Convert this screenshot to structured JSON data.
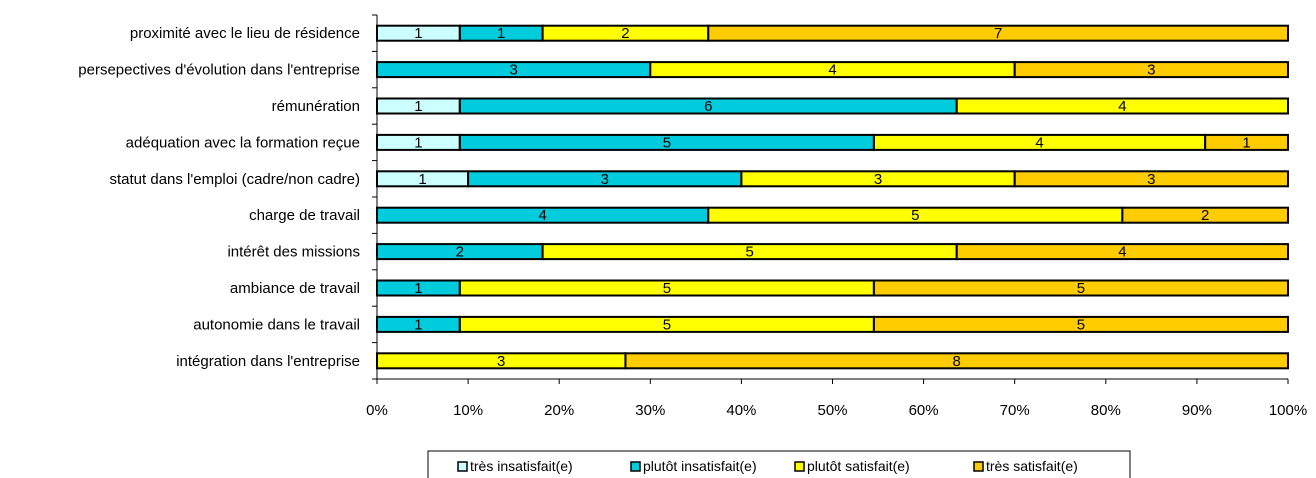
{
  "chart_data": {
    "type": "bar",
    "orientation": "horizontal",
    "stacking": "percent",
    "categories": [
      "proximité avec le lieu de résidence",
      "persepectives d'évolution dans l'entreprise",
      "rémunération",
      "adéquation avec la formation reçue",
      "statut dans l'emploi (cadre/non cadre)",
      "charge de travail",
      "intérêt des missions",
      "ambiance de travail",
      "autonomie dans le travail",
      "intégration dans l'entreprise"
    ],
    "series": [
      {
        "name": "très insatisfait(e)",
        "color": "#ccffff",
        "values": [
          1,
          0,
          1,
          1,
          1,
          0,
          0,
          0,
          0,
          0
        ]
      },
      {
        "name": "plutôt insatisfait(e)",
        "color": "#00ccdd",
        "values": [
          1,
          3,
          6,
          5,
          3,
          4,
          2,
          1,
          1,
          0
        ]
      },
      {
        "name": "plutôt satisfait(e)",
        "color": "#ffff00",
        "values": [
          2,
          4,
          4,
          4,
          3,
          5,
          5,
          5,
          5,
          3
        ]
      },
      {
        "name": "très satisfait(e)",
        "color": "#ffcc00",
        "values": [
          7,
          3,
          0,
          1,
          3,
          2,
          4,
          5,
          5,
          8
        ]
      }
    ],
    "x_ticks": [
      "0%",
      "10%",
      "20%",
      "30%",
      "40%",
      "50%",
      "60%",
      "70%",
      "80%",
      "90%",
      "100%"
    ],
    "xlim": [
      0,
      100
    ],
    "grid": false,
    "legend_position": "bottom",
    "title": "",
    "xlabel": "",
    "ylabel": ""
  }
}
